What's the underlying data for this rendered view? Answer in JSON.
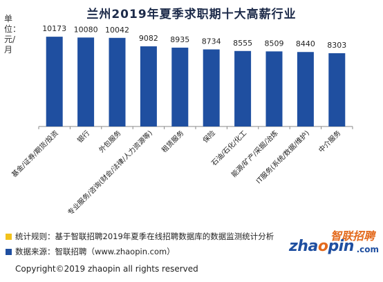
{
  "title": "兰州2019年夏季求职期十大高薪行业",
  "ylabel": "单位：元/月",
  "chart_data": {
    "type": "bar",
    "title": "兰州2019年夏季求职期十大高薪行业",
    "ylabel": "单位：元/月",
    "xlabel": "",
    "categories": [
      "基金/证券/期货/投资",
      "银行",
      "外包服务",
      "专业服务/咨询(财会/法律/人力资源等)",
      "租赁服务",
      "保险",
      "石油/石化/化工",
      "能源/矿产/采掘/冶炼",
      "IT服务(系统/数据/维护)",
      "中介服务"
    ],
    "values": [
      10173,
      10080,
      10042,
      9082,
      8935,
      8734,
      8555,
      8509,
      8440,
      8303
    ],
    "ylim": [
      0,
      11200
    ],
    "bar_color": "#1f4fa0",
    "grid": false,
    "legend": "none"
  },
  "footer": {
    "rule": "统计规则：基于智联招聘2019年夏季在线招聘数据库的数据监测统计分析",
    "source": "数据来源：智联招聘（www.zhaopin.com）",
    "rule_color": "#f2c21b",
    "source_color": "#1f4fa0",
    "copyright": "Copyright©2019 zhaopin all rights reserved"
  },
  "logo": {
    "cn": "智联招聘",
    "en_a": "zha",
    "en_o": "o",
    "en_b": "pin",
    "com": ".com"
  }
}
